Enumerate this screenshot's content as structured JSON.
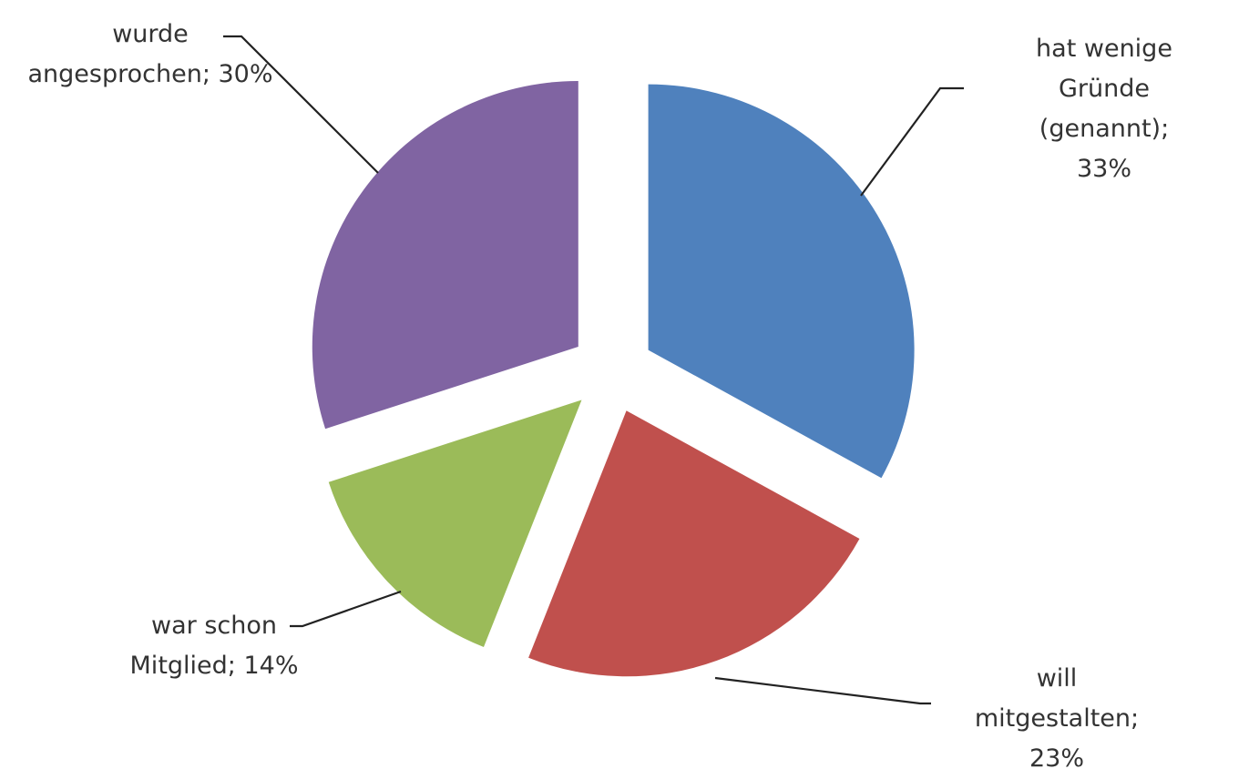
{
  "chart_data": {
    "type": "pie",
    "categories": [
      "hat wenige Gründe\n(genannt); 33%",
      "will mitgestalten;\n23%",
      "war schon\nMitglied; 14%",
      "wurde\nangesprochen; 30%"
    ],
    "values": [
      33,
      23,
      14,
      30
    ],
    "colors": [
      "#4f81bd",
      "#c0504d",
      "#9bbb59",
      "#8064a2"
    ],
    "exploded": true
  }
}
